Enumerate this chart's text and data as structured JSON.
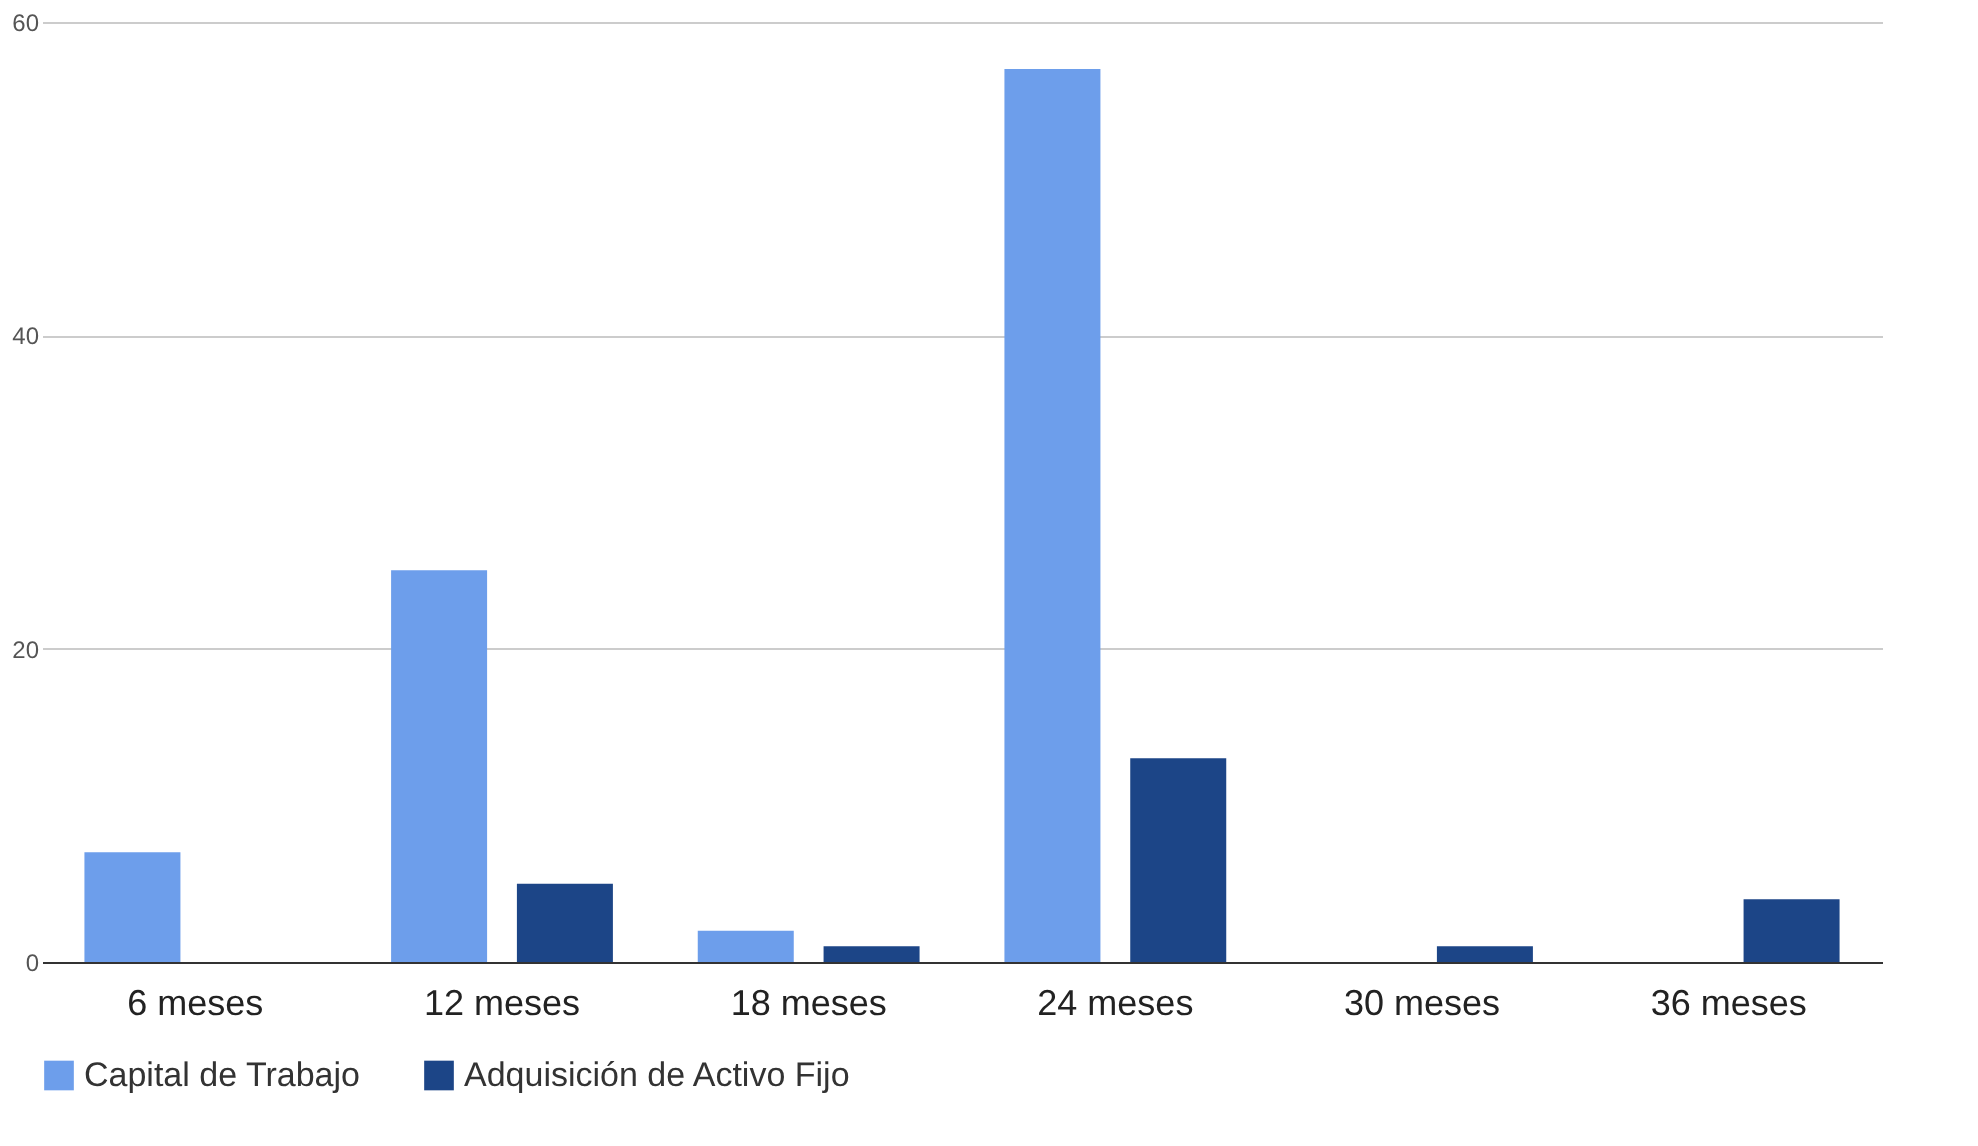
{
  "chart_data": {
    "type": "bar",
    "categories": [
      "6 meses",
      "12 meses",
      "18 meses",
      "24 meses",
      "30 meses",
      "36 meses"
    ],
    "series": [
      {
        "name": "Capital de Trabajo",
        "color": "#6d9eeb",
        "values": [
          7,
          25,
          2,
          57,
          null,
          null
        ]
      },
      {
        "name": "Adquisición de Activo Fijo",
        "color": "#1c4587",
        "values": [
          null,
          5,
          1,
          13,
          1,
          4
        ]
      }
    ],
    "ylim": [
      0,
      60
    ],
    "yticks": [
      0,
      20,
      40,
      60
    ],
    "grid": "y",
    "legend": "bottom"
  }
}
